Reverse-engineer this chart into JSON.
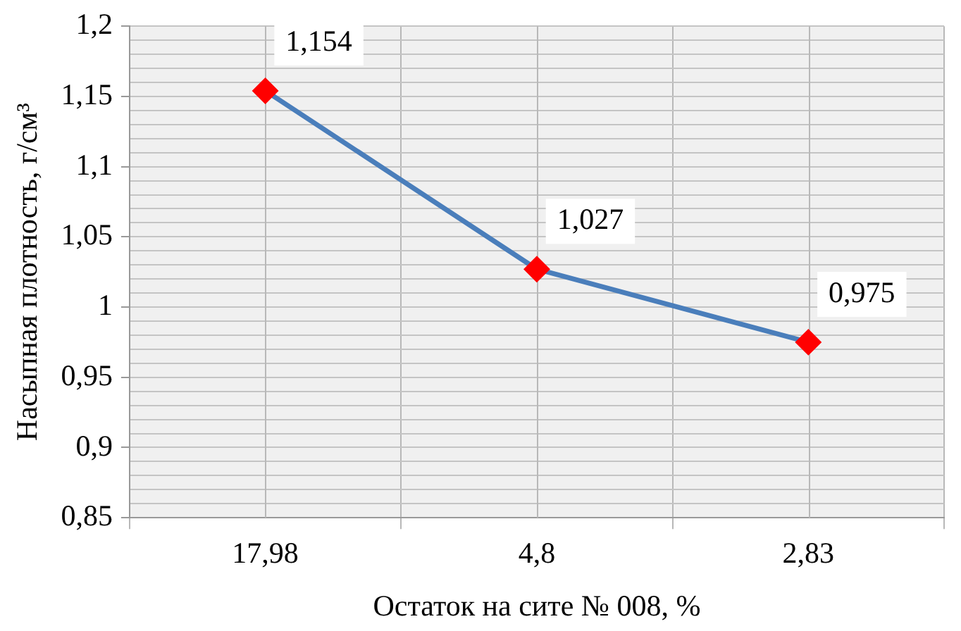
{
  "chart_data": {
    "type": "line",
    "xlabel": "Остаток на сите № 008, %",
    "ylabel": "Насыпная плотность, г/см³",
    "categories": [
      "17,98",
      "4,8",
      "2,83"
    ],
    "series": [
      {
        "color": "#4a7ebb",
        "colors": [
          "#ff0000",
          "#ff0000",
          "#ff0000"
        ],
        "values": [
          1.154,
          1.027,
          0.975
        ],
        "value_labels": [
          "1,154",
          "1,027",
          "0,975"
        ]
      }
    ],
    "marker": "diamond",
    "grid": true,
    "legend": false,
    "ylim": [
      0.85,
      1.2
    ],
    "yticks": [
      {
        "value": 0.85,
        "label": "0,85"
      },
      {
        "value": 0.86,
        "label": null
      },
      {
        "value": 0.87,
        "label": null
      },
      {
        "value": 0.88,
        "label": null
      },
      {
        "value": 0.89,
        "label": null
      },
      {
        "value": 0.9,
        "label": "0,9"
      },
      {
        "value": 0.91,
        "label": null
      },
      {
        "value": 0.92,
        "label": null
      },
      {
        "value": 0.93,
        "label": null
      },
      {
        "value": 0.94,
        "label": null
      },
      {
        "value": 0.95,
        "label": "0,95"
      },
      {
        "value": 0.96,
        "label": null
      },
      {
        "value": 0.97,
        "label": null
      },
      {
        "value": 0.98,
        "label": null
      },
      {
        "value": 0.99,
        "label": null
      },
      {
        "value": 1,
        "label": "1"
      },
      {
        "value": 1.01,
        "label": null
      },
      {
        "value": 1.02,
        "label": null
      },
      {
        "value": 1.03,
        "label": null
      },
      {
        "value": 1.04,
        "label": null
      },
      {
        "value": 1.05,
        "label": "1,05"
      },
      {
        "value": 1.06,
        "label": null
      },
      {
        "value": 1.07,
        "label": null
      },
      {
        "value": 1.08,
        "label": null
      },
      {
        "value": 1.09,
        "label": null
      },
      {
        "value": 1.1,
        "label": "1,1"
      },
      {
        "value": 1.11,
        "label": null
      },
      {
        "value": 1.12,
        "label": null
      },
      {
        "value": 1.13,
        "label": null
      },
      {
        "value": 1.14,
        "label": null
      },
      {
        "value": 1.15,
        "label": "1,15"
      },
      {
        "value": 1.16,
        "label": null
      },
      {
        "value": 1.17,
        "label": null
      },
      {
        "value": 1.18,
        "label": null
      },
      {
        "value": 1.19,
        "label": null
      },
      {
        "value": 1.2,
        "label": "1,2"
      }
    ]
  }
}
